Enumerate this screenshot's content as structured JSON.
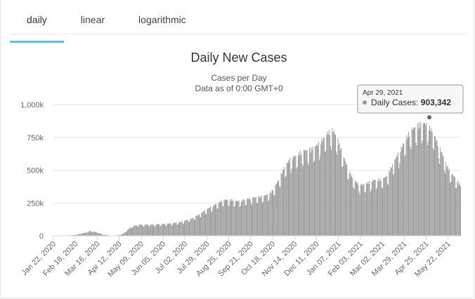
{
  "tabs": [
    {
      "label": "daily",
      "active": true
    },
    {
      "label": "linear",
      "active": false
    },
    {
      "label": "logarithmic",
      "active": false
    }
  ],
  "chart_data": {
    "type": "bar",
    "title": "Daily New Cases",
    "subtitle_lines": [
      "Cases per Day",
      "Data as of 0:00 GMT+0"
    ],
    "xlabel": "",
    "ylabel": "",
    "ylim": [
      0,
      1000000
    ],
    "grid": true,
    "bar_color": "#999999",
    "y_ticks": [
      {
        "value": 0,
        "label": "0"
      },
      {
        "value": 250000,
        "label": "250k"
      },
      {
        "value": 500000,
        "label": "500k"
      },
      {
        "value": 750000,
        "label": "750k"
      },
      {
        "value": 1000000,
        "label": "1,000k"
      }
    ],
    "x_ticks": [
      "Jan 22, 2020",
      "Feb 18, 2020",
      "Mar 16, 2020",
      "Apr 12, 2020",
      "May 09, 2020",
      "Jun 05, 2020",
      "Jul 02, 2020",
      "Jul 29, 2020",
      "Aug 25, 2020",
      "Sep 21, 2020",
      "Oct 18, 2020",
      "Nov 14, 2020",
      "Dec 11, 2020",
      "Jan 07, 2021",
      "Feb 03, 2021",
      "Mar 02, 2021",
      "Mar 29, 2021",
      "Apr 25, 2021",
      "May 22, 2021"
    ],
    "series": [
      {
        "name": "Daily Cases",
        "start_date": "2020-01-22",
        "end_date": "2021-06-06",
        "values": [
          0,
          0,
          2000,
          2500,
          4500,
          8000,
          18000,
          25000,
          36000,
          30000,
          20000,
          8000,
          4000,
          2000,
          4000,
          12000,
          40000,
          70000,
          80000,
          85000,
          84000,
          86000,
          84000,
          88000,
          90000,
          92000,
          96000,
          100000,
          108000,
          118000,
          128000,
          145000,
          168000,
          190000,
          212000,
          230000,
          250000,
          268000,
          273000,
          270000,
          262000,
          266000,
          276000,
          285000,
          291000,
          296000,
          303000,
          314000,
          350000,
          410000,
          485000,
          550000,
          590000,
          605000,
          630000,
          645000,
          650000,
          670000,
          698000,
          735000,
          780000,
          800000,
          740000,
          640000,
          540000,
          460000,
          410000,
          385000,
          390000,
          405000,
          420000,
          425000,
          430000,
          460000,
          530000,
          600000,
          660000,
          730000,
          790000,
          820000,
          840000,
          850000,
          830000,
          780000,
          700000,
          620000,
          530000,
          470000,
          430000,
          380000
        ]
      }
    ],
    "tooltip": {
      "date": "Apr 29, 2021",
      "series_name": "Daily Cases",
      "value_label": "903,342",
      "value": 903342
    }
  }
}
